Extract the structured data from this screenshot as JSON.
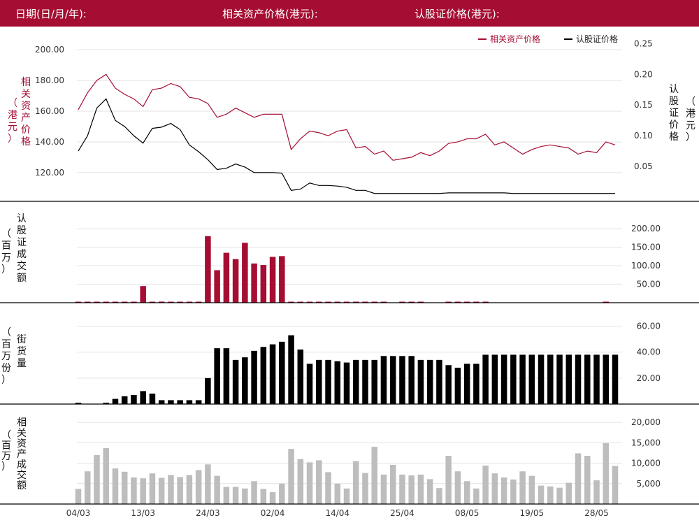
{
  "header": {
    "date_label": "日期(日/月/年):",
    "underlying_label": "相关资产价格(港元):",
    "warrant_label": "认股证价格(港元):"
  },
  "colors": {
    "header_bg": "#a50d32",
    "underlying": "#a50d32",
    "warrant": "#000000",
    "turnover_bar": "#a50d32",
    "outstanding_bar": "#000000",
    "underlying_turnover_bar": "#bdbdbd"
  },
  "chart_data": [
    {
      "type": "line",
      "legend": [
        "相关资产价格",
        "认股证价格"
      ],
      "legend_position": "top-right",
      "ylabel_left": "相关资产价格\n（港元）",
      "ylabel_right": "认股证价格\n（港元）",
      "left_ticks": [
        "200.00",
        "180.00",
        "160.00",
        "140.00",
        "120.00"
      ],
      "right_ticks": [
        "0.25",
        "0.20",
        "0.15",
        "0.10",
        "0.05"
      ],
      "ylim_left": [
        104,
        206
      ],
      "ylim_right": [
        0.0,
        0.255
      ],
      "series": [
        {
          "name": "相关资产价格",
          "axis": "left",
          "values": [
            161,
            172,
            180,
            184,
            175,
            171,
            168,
            163,
            174,
            175,
            178,
            176,
            169,
            168,
            165,
            156,
            158,
            162,
            159,
            156,
            158,
            158,
            158,
            135,
            142,
            147,
            146,
            144,
            147,
            148,
            136,
            137,
            132,
            134,
            128,
            129,
            130,
            133,
            131,
            134,
            139,
            140,
            142,
            142,
            145,
            138,
            140,
            136,
            132,
            135,
            137,
            138,
            137,
            136,
            132,
            134,
            133,
            140,
            138
          ]
        },
        {
          "name": "认股证价格",
          "axis": "right",
          "values": [
            0.075,
            0.1,
            0.145,
            0.16,
            0.125,
            0.115,
            0.1,
            0.088,
            0.112,
            0.114,
            0.12,
            0.11,
            0.085,
            0.074,
            0.061,
            0.045,
            0.047,
            0.054,
            0.049,
            0.04,
            0.04,
            0.04,
            0.039,
            0.011,
            0.013,
            0.023,
            0.019,
            0.019,
            0.018,
            0.016,
            0.011,
            0.011,
            0.006,
            0.006,
            0.006,
            0.006,
            0.006,
            0.006,
            0.006,
            0.006,
            0.007,
            0.007,
            0.007,
            0.007,
            0.007,
            0.007,
            0.007,
            0.006,
            0.006,
            0.006,
            0.006,
            0.006,
            0.006,
            0.006,
            0.006,
            0.006,
            0.006,
            0.006,
            0.006
          ]
        }
      ]
    },
    {
      "type": "bar",
      "ylabel": "认股证成交额\n（百万）",
      "ticks": [
        "200.00",
        "150.00",
        "100.00",
        "50.00"
      ],
      "ylim": [
        0,
        225
      ],
      "values": [
        1,
        1,
        1,
        1,
        1,
        1,
        1,
        45,
        2,
        3,
        1,
        1,
        1,
        1,
        180,
        88,
        135,
        118,
        162,
        106,
        102,
        124,
        126,
        1,
        1,
        1,
        1,
        1,
        1,
        1,
        1,
        1,
        1,
        1,
        0,
        1,
        1,
        1,
        0,
        0,
        1,
        1,
        1,
        1,
        1,
        0,
        0,
        0,
        0,
        0,
        0,
        0,
        0,
        0,
        0,
        0,
        0,
        1,
        0
      ]
    },
    {
      "type": "bar",
      "ylabel": "街货量\n（百万份）",
      "ticks": [
        "60.00",
        "40.00",
        "20.00"
      ],
      "ylim": [
        0,
        63
      ],
      "values": [
        1,
        0,
        0,
        1,
        4,
        6,
        7,
        10,
        8,
        3,
        3,
        3,
        3,
        3,
        20,
        43,
        43,
        34,
        36,
        41,
        44,
        46,
        48,
        53,
        42,
        31,
        34,
        34,
        33,
        32,
        34,
        34,
        34,
        37,
        37,
        37,
        37,
        34,
        34,
        34,
        30,
        28,
        31,
        31,
        38,
        38,
        38,
        38,
        38,
        38,
        38,
        38,
        38,
        38,
        38,
        38,
        38,
        38,
        38
      ]
    },
    {
      "type": "bar",
      "ylabel": "相关资产成交额\n（百万）",
      "ticks": [
        "20,000",
        "15,000",
        "10,000",
        "5,000"
      ],
      "ylim": [
        0,
        20700
      ],
      "values": [
        3700,
        8000,
        12000,
        13700,
        8700,
        7900,
        6500,
        6300,
        7500,
        6400,
        7100,
        6600,
        7100,
        8300,
        9700,
        6900,
        4200,
        4200,
        3800,
        5600,
        3700,
        2900,
        5000,
        13500,
        11000,
        10200,
        10700,
        7800,
        5000,
        3800,
        10500,
        7600,
        14000,
        7200,
        9600,
        7200,
        7000,
        7200,
        6100,
        3900,
        11800,
        8000,
        5600,
        3800,
        9400,
        7500,
        6500,
        6000,
        8000,
        6900,
        4500,
        4300,
        4000,
        5200,
        12400,
        11800,
        5800,
        14900,
        9300
      ]
    }
  ],
  "x_ticks": [
    "04/03",
    "13/03",
    "24/03",
    "02/04",
    "14/04",
    "25/04",
    "08/05",
    "19/05",
    "28/05"
  ]
}
